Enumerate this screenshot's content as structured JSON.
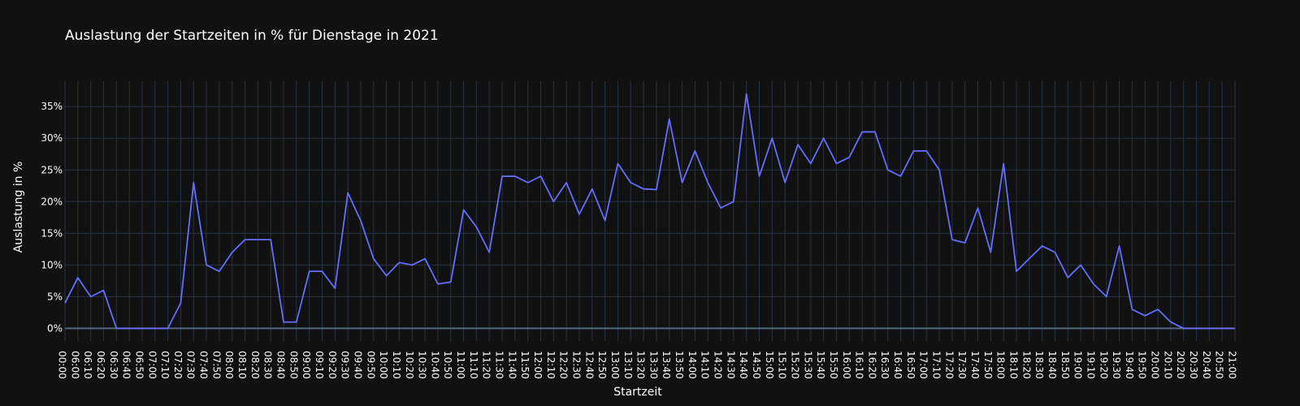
{
  "chart_data": {
    "type": "line",
    "title": "Auslastung der Startzeiten in % für Dienstage in 2021",
    "xlabel": "Startzeit",
    "ylabel": "Auslastung in %",
    "ylim": [
      -2,
      39
    ],
    "y_ticks": [
      0,
      5,
      10,
      15,
      20,
      25,
      30,
      35
    ],
    "y_tick_suffix": "%",
    "grid": true,
    "categories": [
      "00:00",
      "06:00",
      "06:10",
      "06:20",
      "06:30",
      "06:40",
      "06:50",
      "07:00",
      "07:10",
      "07:20",
      "07:30",
      "07:40",
      "07:50",
      "08:00",
      "08:10",
      "08:20",
      "08:30",
      "08:40",
      "08:50",
      "09:00",
      "09:10",
      "09:20",
      "09:30",
      "09:40",
      "09:50",
      "10:00",
      "10:10",
      "10:20",
      "10:30",
      "10:40",
      "10:50",
      "11:00",
      "11:10",
      "11:20",
      "11:30",
      "11:40",
      "11:50",
      "12:00",
      "12:10",
      "12:20",
      "12:30",
      "12:40",
      "12:50",
      "13:00",
      "13:10",
      "13:20",
      "13:30",
      "13:40",
      "13:50",
      "14:00",
      "14:10",
      "14:20",
      "14:30",
      "14:40",
      "14:50",
      "15:00",
      "15:10",
      "15:20",
      "15:30",
      "15:40",
      "15:50",
      "16:00",
      "16:10",
      "16:20",
      "16:30",
      "16:40",
      "16:50",
      "17:00",
      "17:10",
      "17:20",
      "17:30",
      "17:40",
      "17:50",
      "18:00",
      "18:10",
      "18:20",
      "18:30",
      "18:40",
      "18:50",
      "19:00",
      "19:10",
      "19:20",
      "19:30",
      "19:40",
      "19:50",
      "20:00",
      "20:10",
      "20:20",
      "20:30",
      "20:40",
      "20:50",
      "21:00"
    ],
    "series": [
      {
        "color": "#636efa",
        "values": [
          4,
          8,
          5,
          6,
          0,
          0,
          0,
          0,
          0,
          4,
          23,
          10,
          9,
          12,
          14,
          14,
          14,
          1,
          1,
          9,
          9,
          6.3,
          21.4,
          17,
          11,
          8.3,
          10.4,
          10,
          11,
          7,
          7.3,
          18.7,
          16,
          12,
          24,
          24,
          23,
          24,
          20,
          23,
          18,
          22,
          17,
          26,
          23,
          22,
          21.9,
          33,
          23,
          28,
          23,
          19,
          20,
          37,
          24,
          30,
          23,
          29,
          26,
          30,
          26,
          27,
          31,
          31,
          25,
          24,
          28,
          28,
          25,
          14,
          13.5,
          19,
          12,
          26,
          9,
          11,
          13,
          12,
          8,
          10,
          7,
          5,
          13,
          3,
          2,
          3,
          1,
          0,
          0,
          0,
          0,
          0
        ]
      }
    ]
  }
}
